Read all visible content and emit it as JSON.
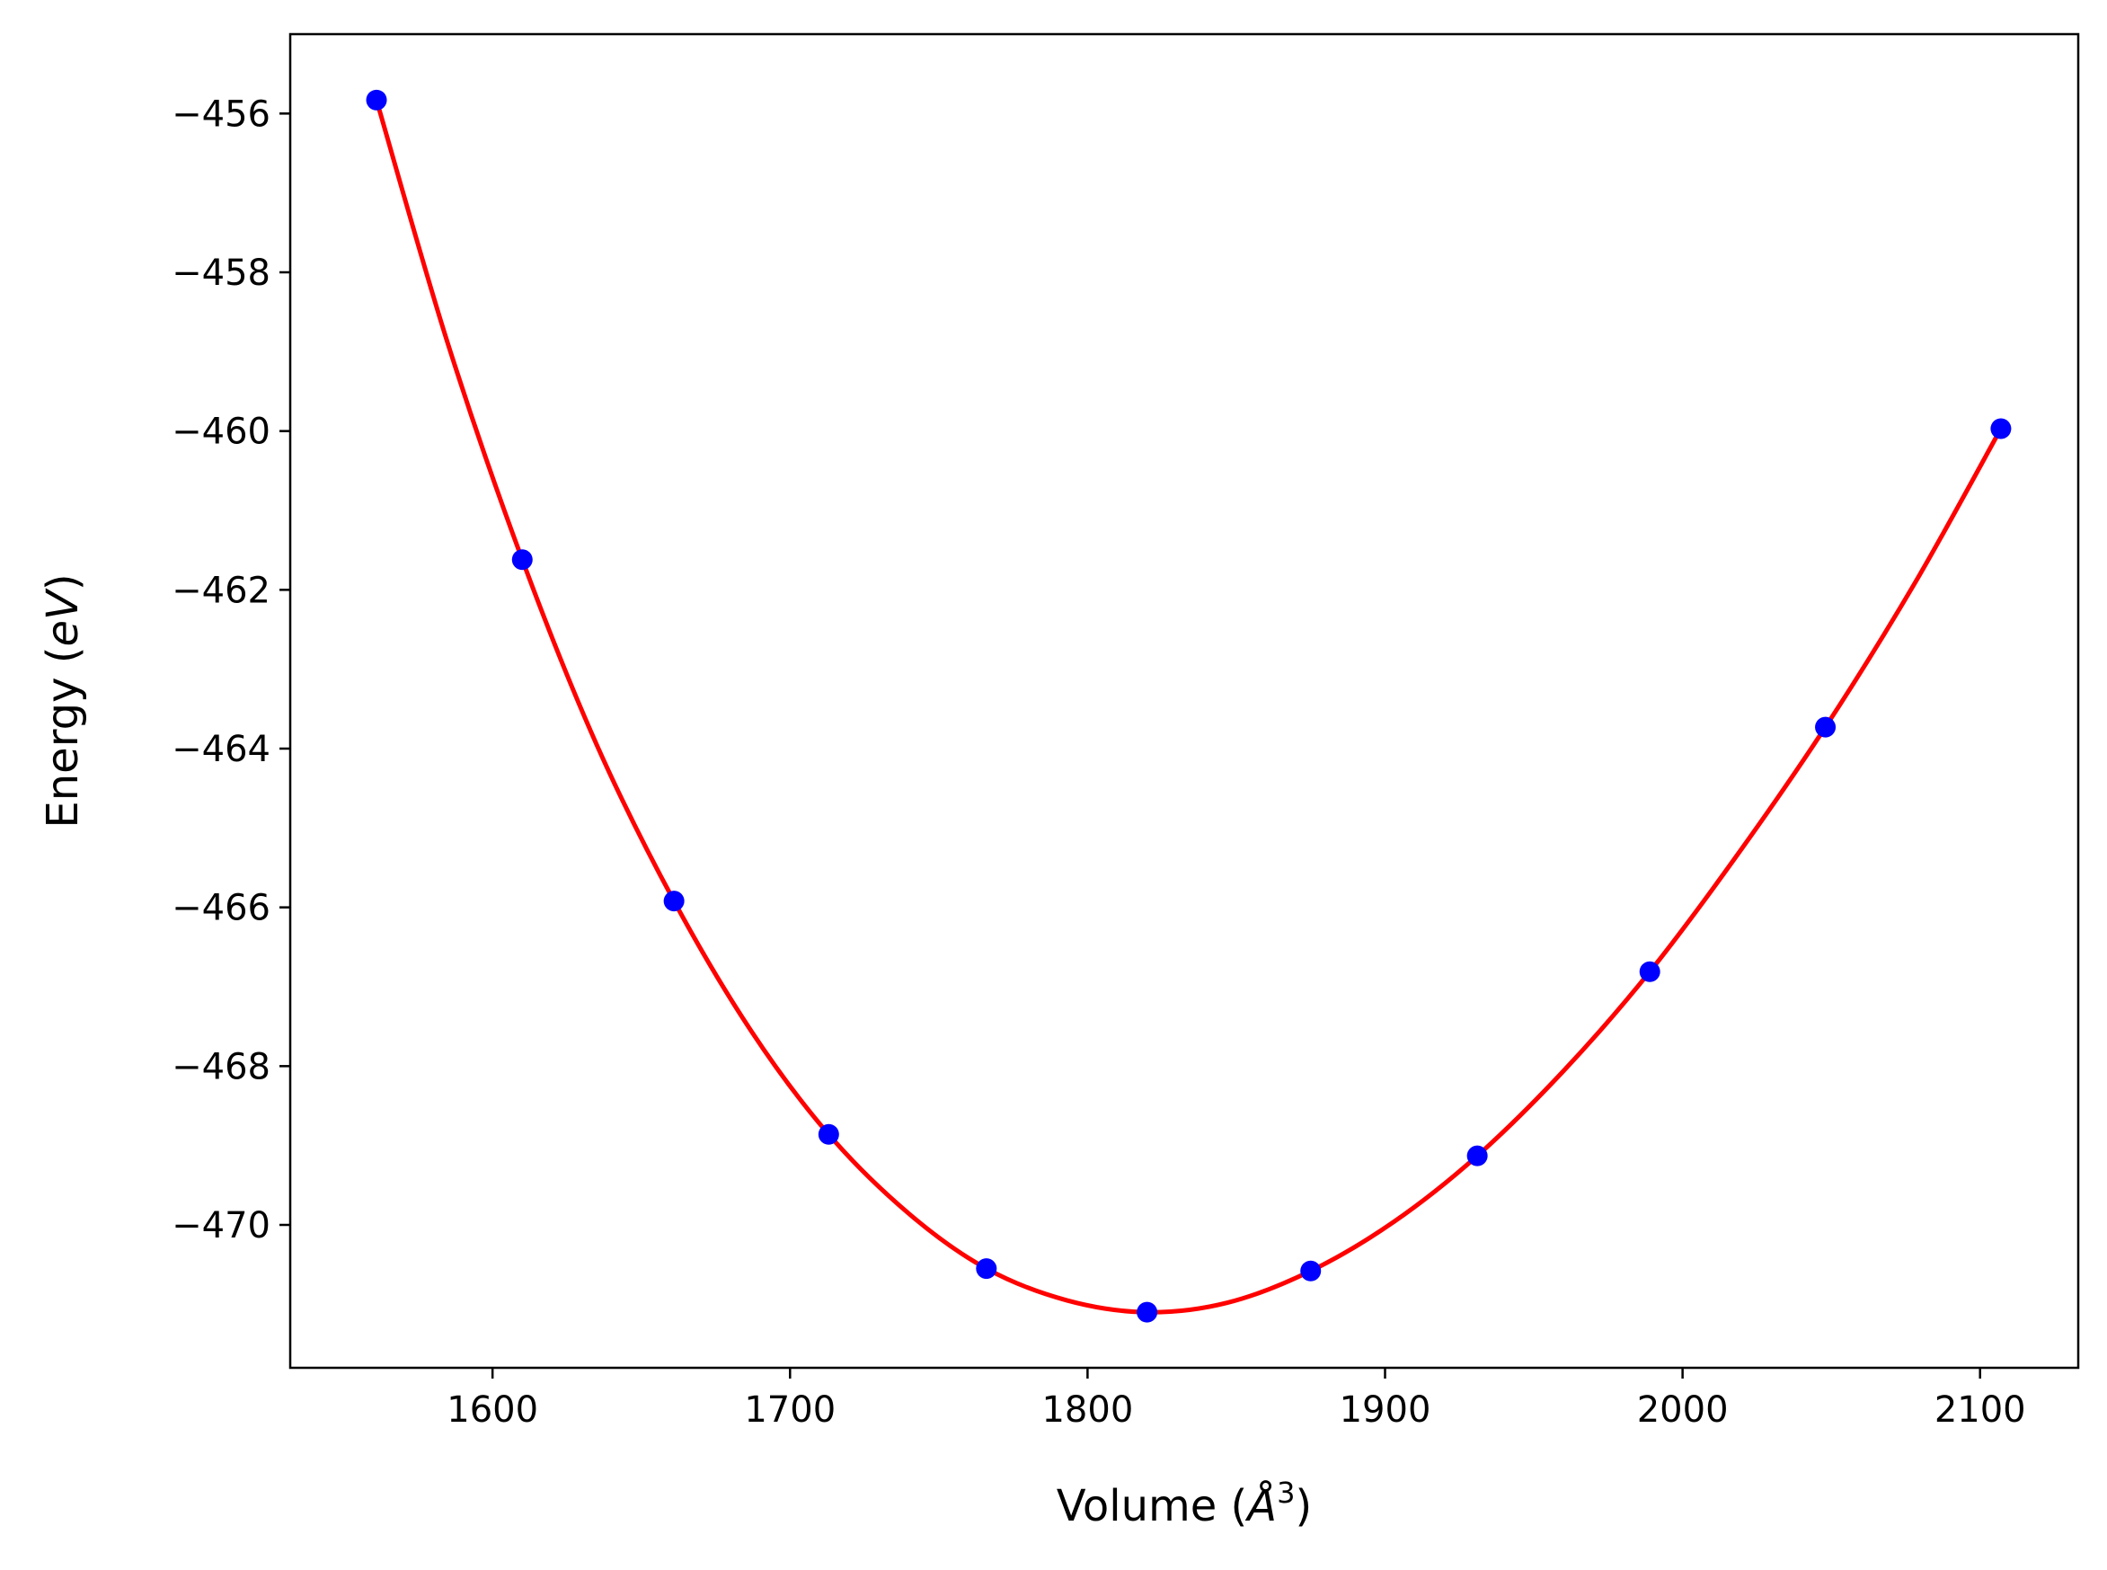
{
  "chart_data": {
    "type": "scatter",
    "title": "",
    "xlabel": "Volume (Å³)",
    "ylabel": "Energy (eV)",
    "xlabel_parts": {
      "prefix": "Volume (",
      "symbol": "Å",
      "sup": "3",
      "suffix": ")"
    },
    "ylabel_parts": {
      "prefix": "Energy (",
      "italic": "eV",
      "suffix": ")"
    },
    "xlim": [
      1532,
      2133
    ],
    "ylim": [
      -471.8,
      -455.0
    ],
    "xticks": [
      1600,
      1700,
      1800,
      1900,
      2000,
      2100
    ],
    "xtick_labels": [
      "1600",
      "1700",
      "1800",
      "1900",
      "2000",
      "2100"
    ],
    "yticks": [
      -456,
      -458,
      -460,
      -462,
      -464,
      -466,
      -468,
      -470
    ],
    "ytick_labels": [
      "−456",
      "−458",
      "−460",
      "−462",
      "−464",
      "−466",
      "−468",
      "−470"
    ],
    "grid": false,
    "legend": "none",
    "series": [
      {
        "kind": "points",
        "color": "#0000ff",
        "x": [
          1561,
          1610,
          1661,
          1713,
          1766,
          1820,
          1875,
          1931,
          1989,
          2048,
          2107
        ],
        "y": [
          -455.83,
          -461.62,
          -465.92,
          -468.86,
          -470.55,
          -471.1,
          -470.58,
          -469.13,
          -466.81,
          -463.73,
          -459.97
        ]
      },
      {
        "kind": "fit-curve",
        "color": "#ff0000",
        "x": [
          1561,
          1585,
          1610,
          1635,
          1661,
          1687,
          1713,
          1740,
          1766,
          1793,
          1820,
          1847,
          1875,
          1903,
          1931,
          1960,
          1989,
          2018,
          2048,
          2078,
          2107
        ],
        "y": [
          -455.83,
          -458.9,
          -461.62,
          -463.95,
          -465.92,
          -467.56,
          -468.86,
          -469.86,
          -470.55,
          -470.95,
          -471.1,
          -470.98,
          -470.58,
          -469.96,
          -469.13,
          -468.06,
          -466.81,
          -465.36,
          -463.73,
          -461.92,
          -459.97
        ]
      }
    ]
  }
}
